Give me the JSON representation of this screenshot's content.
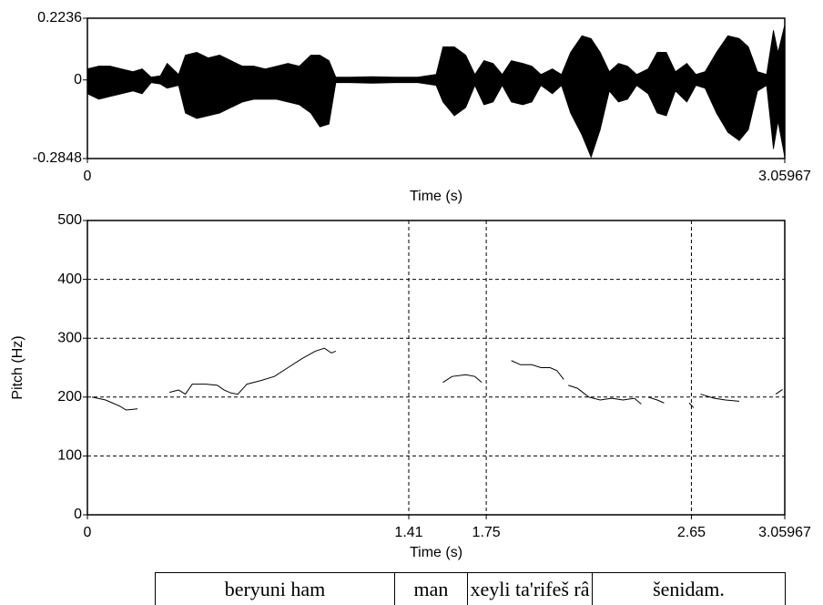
{
  "chart_data": [
    {
      "type": "area",
      "xlabel": "Time (s)",
      "xlim": [
        0,
        3.05967
      ],
      "xticks": [
        0,
        3.05967
      ],
      "ylim": [
        -0.2848,
        0.2236
      ],
      "yticks": [
        -0.2848,
        0,
        0.2236
      ],
      "color": "#000000",
      "x": [
        0,
        0.05,
        0.1,
        0.15,
        0.2,
        0.24,
        0.28,
        0.32,
        0.35,
        0.4,
        0.43,
        0.48,
        0.53,
        0.58,
        0.63,
        0.68,
        0.73,
        0.78,
        0.83,
        0.88,
        0.93,
        0.98,
        1.02,
        1.06,
        1.09,
        1.15,
        1.25,
        1.35,
        1.45,
        1.53,
        1.56,
        1.61,
        1.66,
        1.7,
        1.74,
        1.78,
        1.82,
        1.86,
        1.91,
        1.95,
        1.99,
        2.04,
        2.08,
        2.12,
        2.17,
        2.21,
        2.25,
        2.29,
        2.33,
        2.37,
        2.41,
        2.46,
        2.5,
        2.54,
        2.58,
        2.63,
        2.67,
        2.71,
        2.76,
        2.81,
        2.86,
        2.9,
        2.94,
        2.98,
        3.01,
        3.03,
        3.05967
      ],
      "series": [
        {
          "values": [
            0.04,
            0.05,
            0.05,
            0.04,
            0.03,
            0.04,
            0.01,
            0.015,
            0.06,
            0.02,
            0.09,
            0.1,
            0.08,
            0.09,
            0.07,
            0.05,
            0.05,
            0.04,
            0.05,
            0.06,
            0.05,
            0.09,
            0.09,
            0.07,
            0.01,
            0.01,
            0.012,
            0.01,
            0.01,
            0.02,
            0.12,
            0.12,
            0.09,
            0.02,
            0.07,
            0.06,
            0.02,
            0.07,
            0.06,
            0.05,
            0.02,
            0.04,
            0.02,
            0.1,
            0.16,
            0.15,
            0.1,
            0.03,
            0.06,
            0.05,
            0.02,
            0.04,
            0.1,
            0.1,
            0.03,
            0.06,
            0.02,
            0.03,
            0.1,
            0.16,
            0.15,
            0.12,
            0.03,
            0.02,
            0.18,
            0.1,
            0.2
          ]
        },
        {
          "values": [
            -0.05,
            -0.07,
            -0.06,
            -0.05,
            -0.04,
            -0.05,
            -0.01,
            -0.015,
            -0.03,
            -0.02,
            -0.12,
            -0.14,
            -0.13,
            -0.12,
            -0.1,
            -0.08,
            -0.07,
            -0.07,
            -0.07,
            -0.08,
            -0.09,
            -0.12,
            -0.17,
            -0.16,
            -0.01,
            -0.01,
            -0.012,
            -0.01,
            -0.01,
            -0.02,
            -0.08,
            -0.13,
            -0.1,
            -0.02,
            -0.09,
            -0.08,
            -0.02,
            -0.08,
            -0.09,
            -0.08,
            -0.02,
            -0.05,
            -0.02,
            -0.12,
            -0.2,
            -0.28,
            -0.18,
            -0.04,
            -0.08,
            -0.07,
            -0.02,
            -0.05,
            -0.12,
            -0.13,
            -0.04,
            -0.08,
            -0.02,
            -0.03,
            -0.12,
            -0.19,
            -0.22,
            -0.18,
            -0.04,
            -0.02,
            -0.25,
            -0.15,
            -0.28
          ]
        }
      ]
    },
    {
      "type": "line",
      "xlabel": "Time (s)",
      "ylabel": "Pitch (Hz)",
      "xlim": [
        0,
        3.05967
      ],
      "xticks": [
        0,
        1.41,
        1.75,
        2.65,
        3.05967
      ],
      "ylim": [
        0,
        500
      ],
      "yticks": [
        0,
        100,
        200,
        300,
        400,
        500
      ],
      "grid": true,
      "color": "#000000",
      "x": [
        0.02,
        0.08,
        0.14,
        0.17,
        0.22,
        null,
        0.36,
        0.4,
        0.43,
        0.46,
        0.52,
        0.57,
        0.6,
        0.63,
        0.66,
        0.7,
        0.76,
        0.82,
        0.88,
        0.94,
        1.0,
        1.04,
        1.07,
        1.09,
        null,
        1.56,
        1.6,
        1.66,
        1.7,
        1.73,
        null,
        1.86,
        1.9,
        1.95,
        1.99,
        2.03,
        2.06,
        2.09,
        null,
        2.11,
        2.15,
        2.2,
        2.25,
        2.3,
        2.35,
        2.4,
        2.43,
        null,
        2.46,
        2.5,
        2.53,
        null,
        2.64,
        2.66,
        null,
        2.69,
        2.75,
        2.8,
        2.86,
        null,
        3.02,
        3.05
      ],
      "values": [
        200,
        195,
        185,
        178,
        180,
        null,
        208,
        212,
        205,
        222,
        222,
        220,
        212,
        207,
        205,
        222,
        228,
        235,
        250,
        265,
        278,
        283,
        275,
        278,
        null,
        225,
        235,
        238,
        235,
        225,
        null,
        262,
        255,
        255,
        250,
        250,
        245,
        230,
        null,
        220,
        215,
        200,
        195,
        198,
        195,
        198,
        188,
        null,
        200,
        195,
        190,
        null,
        190,
        182,
        null,
        205,
        198,
        195,
        193,
        null,
        205,
        213
      ]
    }
  ],
  "textgrid": {
    "intervals": [
      "beryuni ham",
      "man",
      "xeyli ta'rifeš râ",
      "šenidam."
    ]
  }
}
